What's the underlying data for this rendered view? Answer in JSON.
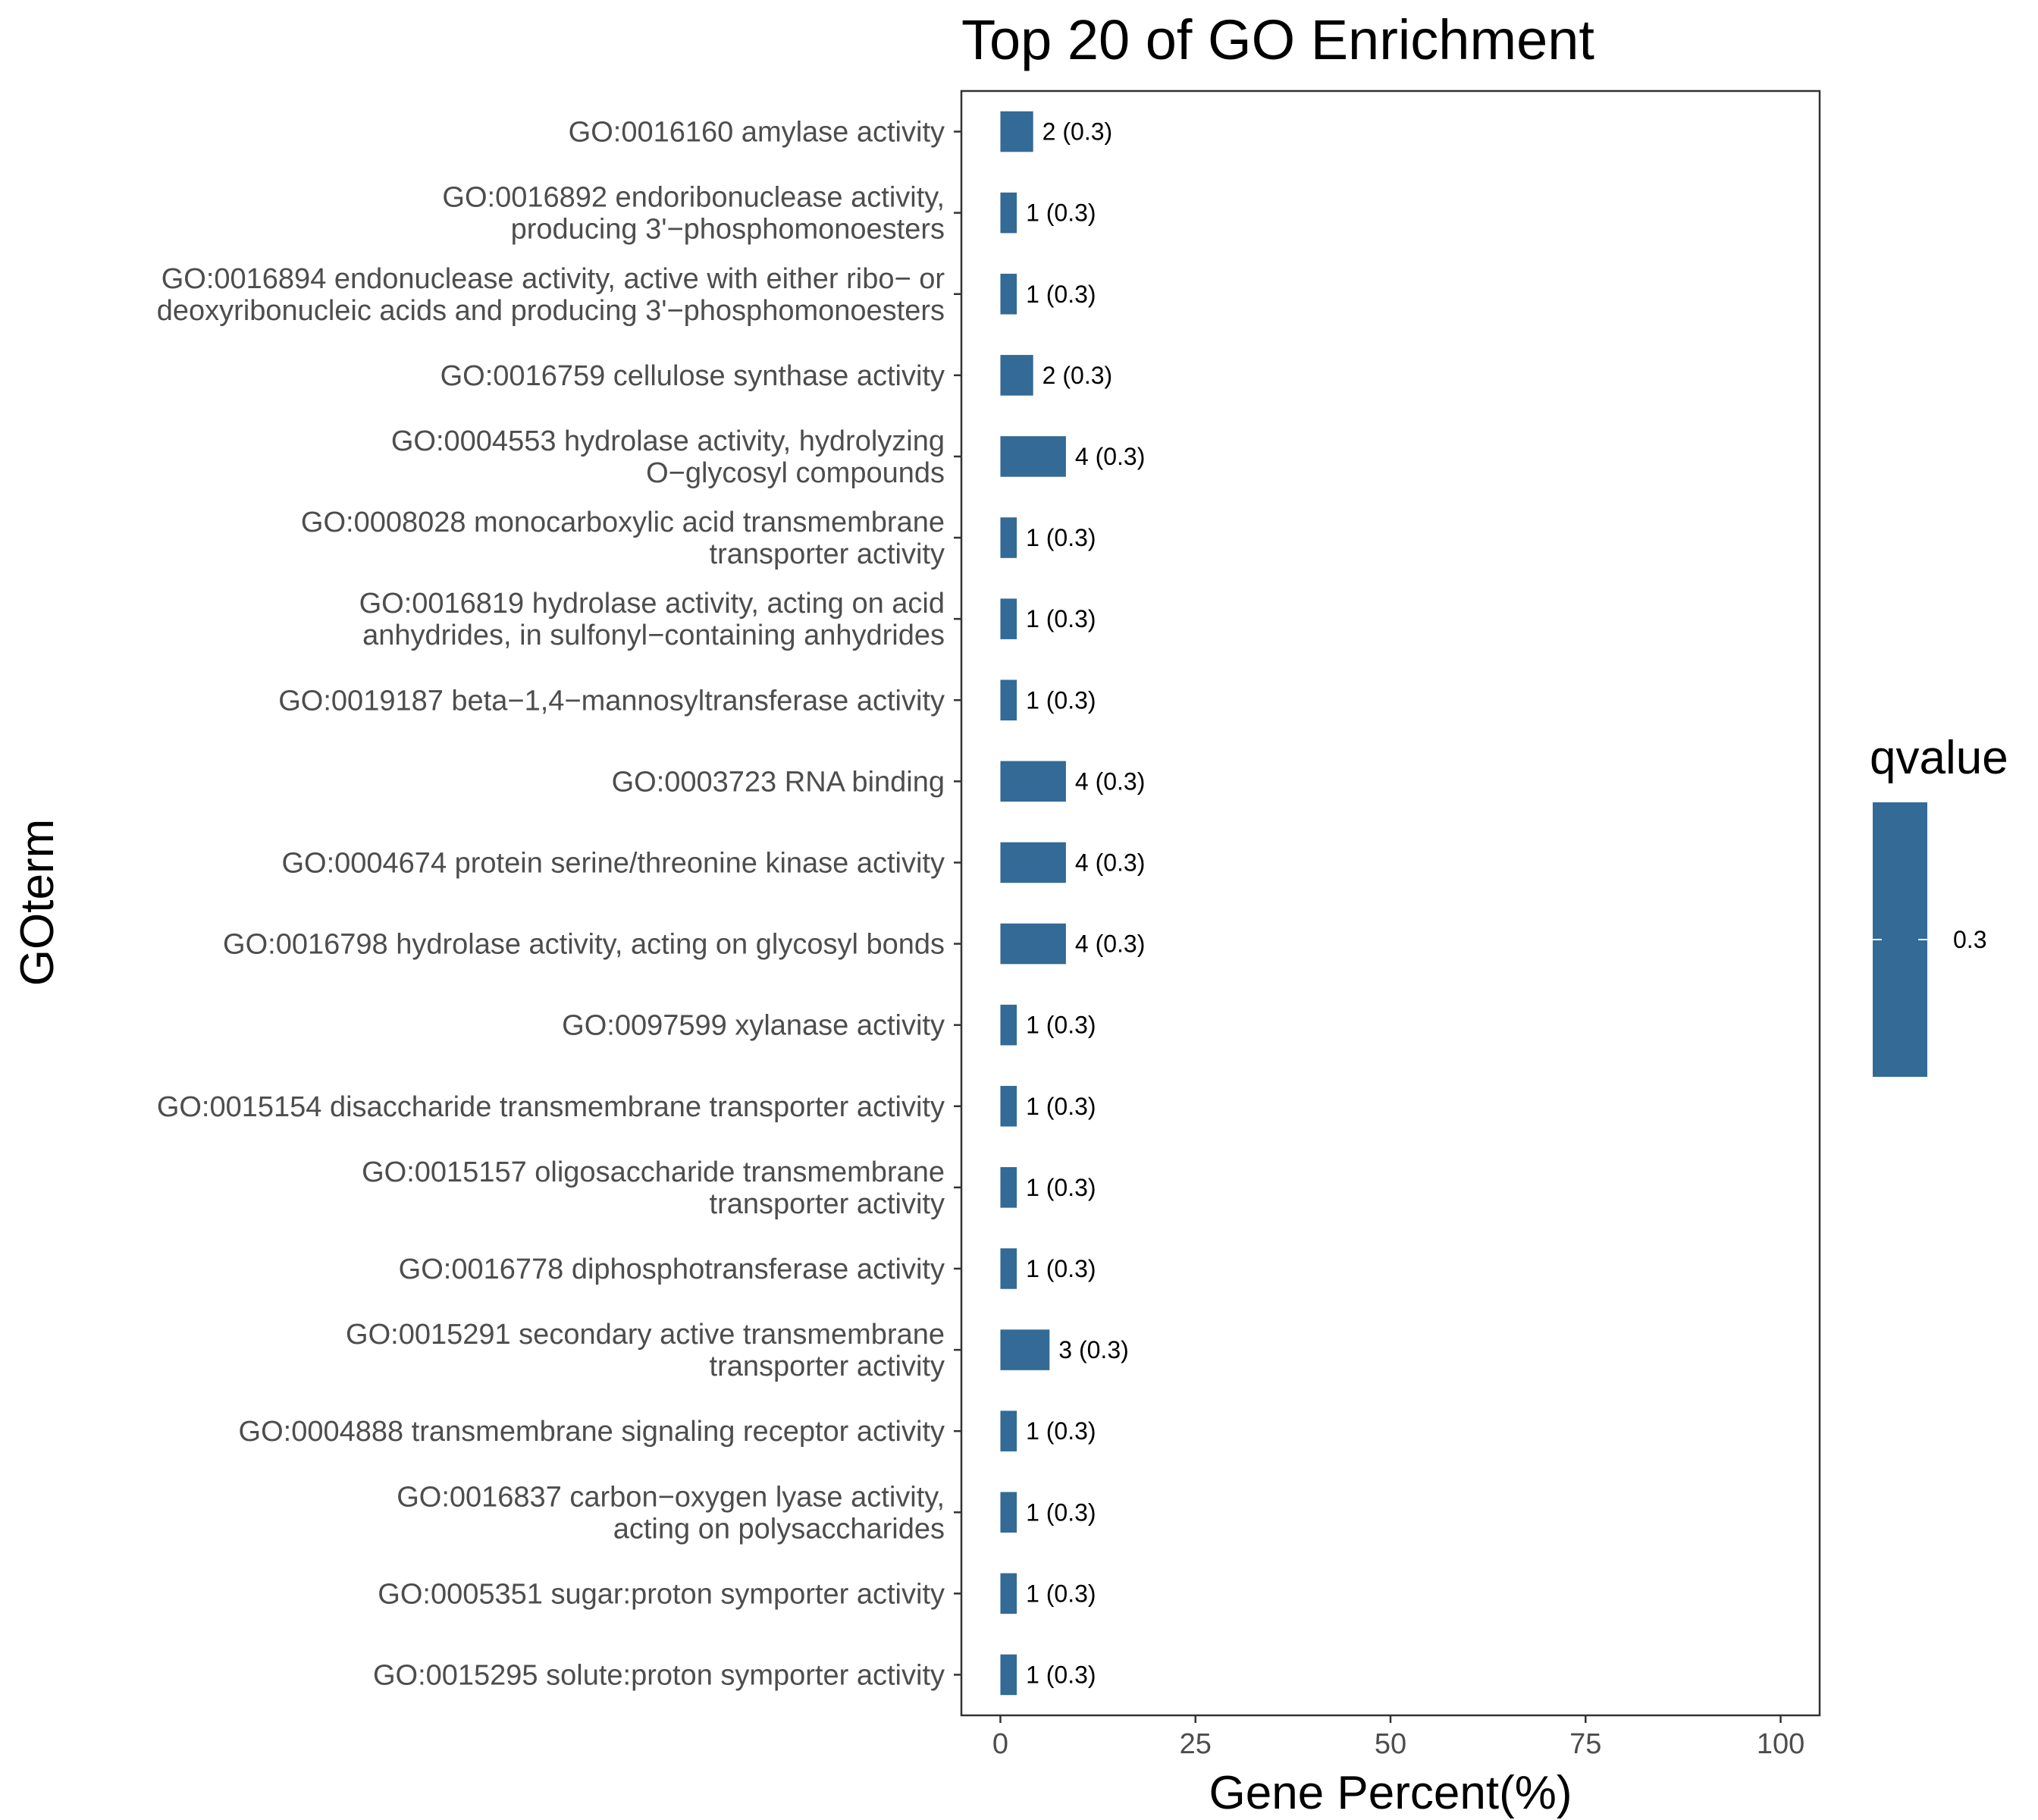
{
  "chart_data": {
    "type": "bar",
    "orientation": "horizontal",
    "title": "Top 20 of GO Enrichment",
    "xlabel": "Gene Percent(%)",
    "ylabel": "GOterm",
    "xlim": [
      -5,
      105
    ],
    "xticks": [
      0,
      25,
      50,
      75,
      100
    ],
    "grid": false,
    "bar_color": "#336a96",
    "categories": [
      "GO:0016160 amylase activity",
      "GO:0016892 endoribonuclease activity,\nproducing 3'−phosphomonoesters",
      "GO:0016894 endonuclease activity, active with either ribo− or\ndeoxyribonucleic acids and producing 3'−phosphomonoesters",
      "GO:0016759 cellulose synthase activity",
      "GO:0004553 hydrolase activity, hydrolyzing\nO−glycosyl compounds",
      "GO:0008028 monocarboxylic acid transmembrane\ntransporter activity",
      "GO:0016819 hydrolase activity, acting on acid\nanhydrides, in sulfonyl−containing anhydrides",
      "GO:0019187 beta−1,4−mannosyltransferase activity",
      "GO:0003723 RNA binding",
      "GO:0004674 protein serine/threonine kinase activity",
      "GO:0016798 hydrolase activity, acting on glycosyl bonds",
      "GO:0097599 xylanase activity",
      "GO:0015154 disaccharide transmembrane transporter activity",
      "GO:0015157 oligosaccharide transmembrane\ntransporter activity",
      "GO:0016778 diphosphotransferase activity",
      "GO:0015291 secondary active transmembrane\ntransporter activity",
      "GO:0004888 transmembrane signaling receptor activity",
      "GO:0016837 carbon−oxygen lyase activity,\nacting on polysaccharides",
      "GO:0005351 sugar:proton symporter activity",
      "GO:0015295 solute:proton symporter activity"
    ],
    "values": [
      4.2,
      2.1,
      2.1,
      4.2,
      8.4,
      2.1,
      2.1,
      2.1,
      8.4,
      8.4,
      8.4,
      2.1,
      2.1,
      2.1,
      2.1,
      6.3,
      2.1,
      2.1,
      2.1,
      2.1
    ],
    "labels": [
      "2 (0.3)",
      "1 (0.3)",
      "1 (0.3)",
      "2 (0.3)",
      "4 (0.3)",
      "1 (0.3)",
      "1 (0.3)",
      "1 (0.3)",
      "4 (0.3)",
      "4 (0.3)",
      "4 (0.3)",
      "1 (0.3)",
      "1 (0.3)",
      "1 (0.3)",
      "1 (0.3)",
      "3 (0.3)",
      "1 (0.3)",
      "1 (0.3)",
      "1 (0.3)",
      "1 (0.3)"
    ],
    "legend": {
      "title": "qvalue",
      "labels": [
        "0.3"
      ],
      "position": "right"
    }
  }
}
